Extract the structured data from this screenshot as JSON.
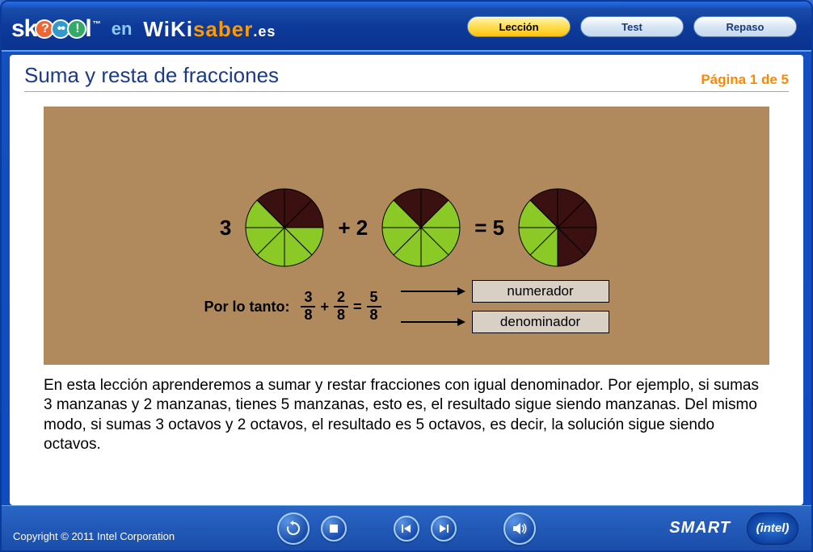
{
  "logo": {
    "part1": "sk",
    "part2": "l",
    "en": "en",
    "wiki": "WiKi",
    "saber": "saber",
    "es": ".es",
    "tm": "™"
  },
  "nav": {
    "leccion": "Lección",
    "test": "Test",
    "repaso": "Repaso"
  },
  "lesson": {
    "title": "Suma y resta de fracciones",
    "page_indicator": "Página 1 de 5"
  },
  "diagram": {
    "bg_color": "#b08a5c",
    "pie_green": "#8ac926",
    "pie_dark": "#3a1010",
    "pie_stroke": "#000000",
    "pie1": {
      "label": "3",
      "dark_slices": 3
    },
    "pie2": {
      "label": "+ 2",
      "dark_slices": 2
    },
    "pie3": {
      "label": "= 5",
      "dark_slices": 5
    },
    "eqn_prefix": "Por lo tanto:",
    "frac1_num": "3",
    "frac1_den": "8",
    "op1": "+",
    "frac2_num": "2",
    "frac2_den": "8",
    "eq": "=",
    "frac3_num": "5",
    "frac3_den": "8",
    "numerador_label": "numerador",
    "denominador_label": "denominador"
  },
  "body_text": "En esta lección aprenderemos a sumar y restar fracciones con igual denominador. Por ejemplo, si sumas 3 manzanas y 2 manzanas, tienes 5 manzanas, esto es, el resultado sigue siendo manzanas. Del mismo modo, si sumas 3 octavos y 2 octavos, el resultado es 5 octavos, es decir, la solución sigue siendo octavos.",
  "footer": {
    "copyright": "Copyright © 2011 Intel Corporation",
    "smart": "SMART",
    "intel": "intel"
  },
  "colors": {
    "header_bg": "#133d9a",
    "accent_orange": "#ff8800",
    "title_blue": "#1a3a8a"
  }
}
